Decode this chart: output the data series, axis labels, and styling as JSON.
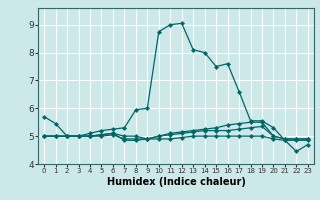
{
  "xlabel": "Humidex (Indice chaleur)",
  "xlim": [
    -0.5,
    23.5
  ],
  "ylim": [
    4.0,
    9.6
  ],
  "yticks": [
    4,
    5,
    6,
    7,
    8,
    9
  ],
  "xticks": [
    0,
    1,
    2,
    3,
    4,
    5,
    6,
    7,
    8,
    9,
    10,
    11,
    12,
    13,
    14,
    15,
    16,
    17,
    18,
    19,
    20,
    21,
    22,
    23
  ],
  "bg_color": "#cce8e8",
  "grid_color": "#ffffff",
  "line_color": "#006666",
  "lines": [
    {
      "x": [
        0,
        1,
        2,
        3,
        4,
        5,
        6,
        7,
        8,
        9,
        10,
        11,
        12,
        13,
        14,
        15,
        16,
        17,
        18,
        19,
        20,
        21,
        22,
        23
      ],
      "y": [
        5.7,
        5.45,
        5.0,
        5.0,
        5.1,
        5.2,
        5.25,
        5.3,
        5.95,
        6.0,
        8.75,
        9.0,
        9.05,
        8.1,
        8.0,
        7.5,
        7.6,
        6.6,
        5.55,
        5.55,
        5.3,
        4.85,
        4.45,
        4.7
      ]
    },
    {
      "x": [
        0,
        1,
        2,
        3,
        4,
        5,
        6,
        7,
        8,
        9,
        10,
        11,
        12,
        13,
        14,
        15,
        16,
        17,
        18,
        19,
        20,
        21,
        22,
        23
      ],
      "y": [
        5.0,
        5.0,
        5.0,
        5.0,
        5.0,
        5.05,
        5.1,
        4.85,
        4.85,
        4.9,
        5.0,
        5.1,
        5.15,
        5.2,
        5.25,
        5.3,
        5.4,
        5.45,
        5.5,
        5.5,
        5.0,
        4.9,
        4.9,
        4.9
      ]
    },
    {
      "x": [
        0,
        1,
        2,
        3,
        4,
        5,
        6,
        7,
        8,
        9,
        10,
        11,
        12,
        13,
        14,
        15,
        16,
        17,
        18,
        19,
        20,
        21,
        22,
        23
      ],
      "y": [
        5.0,
        5.0,
        5.0,
        5.0,
        5.0,
        5.0,
        5.05,
        4.9,
        4.9,
        4.9,
        5.0,
        5.05,
        5.1,
        5.15,
        5.2,
        5.2,
        5.2,
        5.25,
        5.3,
        5.35,
        5.0,
        4.9,
        4.9,
        4.9
      ]
    },
    {
      "x": [
        0,
        1,
        2,
        3,
        4,
        5,
        6,
        7,
        8,
        9,
        10,
        11,
        12,
        13,
        14,
        15,
        16,
        17,
        18,
        19,
        20,
        21,
        22,
        23
      ],
      "y": [
        5.0,
        5.0,
        5.0,
        5.0,
        5.0,
        5.05,
        5.1,
        5.0,
        5.0,
        4.9,
        4.9,
        4.9,
        4.95,
        5.0,
        5.0,
        5.0,
        5.0,
        5.0,
        5.0,
        5.0,
        4.9,
        4.85,
        4.85,
        4.85
      ]
    }
  ]
}
